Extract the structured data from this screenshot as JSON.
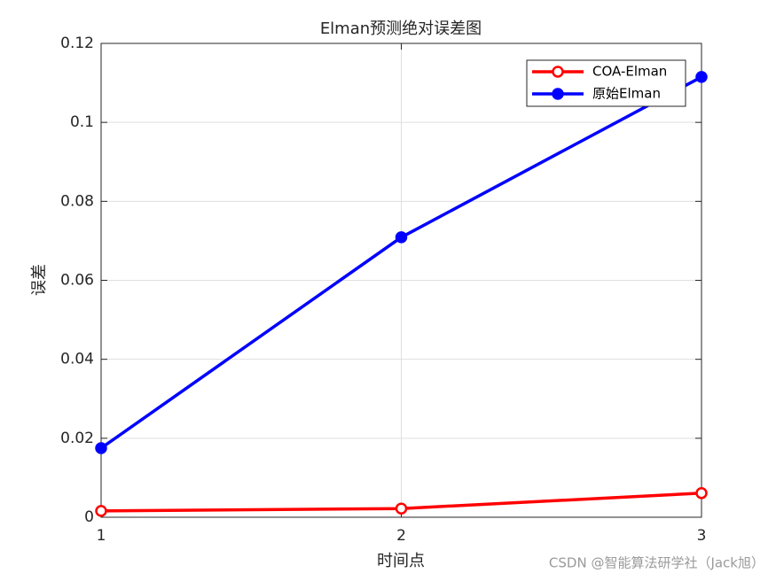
{
  "chart_data": {
    "type": "line",
    "title": "Elman预测绝对误差图",
    "x_label": "时间点",
    "y_label": "误差",
    "x": [
      1,
      2,
      3
    ],
    "series": [
      {
        "name": "COA-Elman",
        "color": "#ff0000",
        "marker_filled": false,
        "values": [
          0.0016,
          0.0022,
          0.0061
        ]
      },
      {
        "name": "原始Elman",
        "color": "#0000ff",
        "marker_filled": true,
        "values": [
          0.0175,
          0.0709,
          0.1115
        ]
      }
    ],
    "xlim": [
      1,
      3
    ],
    "xticks": [
      1,
      2,
      3
    ],
    "ylim": [
      0,
      0.12
    ],
    "yticks": [
      0,
      0.02,
      0.04,
      0.06,
      0.08,
      0.1,
      0.12
    ],
    "grid": true,
    "legend": "northeast",
    "watermark": "CSDN @智能算法研学社（Jack旭）"
  }
}
